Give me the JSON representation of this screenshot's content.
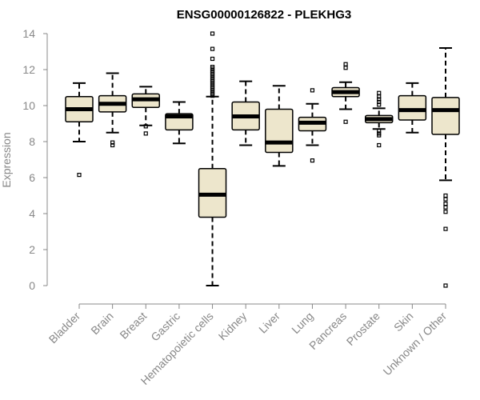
{
  "chart_data": {
    "type": "boxplot",
    "title": "ENSG00000126822 - PLEKHG3",
    "xlabel": "",
    "ylabel": "Expression",
    "ylim": [
      0,
      14
    ],
    "yticks": [
      0,
      2,
      4,
      6,
      8,
      10,
      12,
      14
    ],
    "colors": {
      "box_fill": "#ede6cc",
      "stroke": "#000000",
      "axis": "#888888",
      "label": "#888888",
      "title": "#000000"
    },
    "categories": [
      "Bladder",
      "Brain",
      "Breast",
      "Gastric",
      "Hematopoietic cells",
      "Kidney",
      "Liver",
      "Lung",
      "Pancreas",
      "Prostate",
      "Skin",
      "Unknown / Other"
    ],
    "boxes": [
      {
        "category": "Bladder",
        "whisker_low": 8.0,
        "q1": 9.1,
        "median": 9.8,
        "q3": 10.5,
        "whisker_high": 11.25,
        "outliers": [
          6.15
        ]
      },
      {
        "category": "Brain",
        "whisker_low": 8.5,
        "q1": 9.65,
        "median": 10.1,
        "q3": 10.55,
        "whisker_high": 11.8,
        "outliers": [
          7.8,
          7.95
        ]
      },
      {
        "category": "Breast",
        "whisker_low": 8.9,
        "q1": 9.9,
        "median": 10.35,
        "q3": 10.65,
        "whisker_high": 11.05,
        "outliers": [
          8.45,
          8.85
        ]
      },
      {
        "category": "Gastric",
        "whisker_low": 7.9,
        "q1": 8.65,
        "median": 9.4,
        "q3": 9.55,
        "whisker_high": 10.2,
        "outliers": []
      },
      {
        "category": "Hematopoietic cells",
        "whisker_low": 0.0,
        "q1": 3.8,
        "median": 5.05,
        "q3": 6.5,
        "whisker_high": 10.5,
        "outliers": [
          10.55,
          10.65,
          10.75,
          10.85,
          10.95,
          11.05,
          11.15,
          11.25,
          11.35,
          11.45,
          11.55,
          11.65,
          11.75,
          11.85,
          11.95,
          12.05,
          12.15,
          12.6,
          13.15,
          14.0
        ]
      },
      {
        "category": "Kidney",
        "whisker_low": 7.8,
        "q1": 8.65,
        "median": 9.4,
        "q3": 10.2,
        "whisker_high": 11.35,
        "outliers": []
      },
      {
        "category": "Liver",
        "whisker_low": 6.65,
        "q1": 7.4,
        "median": 7.95,
        "q3": 9.8,
        "whisker_high": 11.1,
        "outliers": []
      },
      {
        "category": "Lung",
        "whisker_low": 7.8,
        "q1": 8.6,
        "median": 9.05,
        "q3": 9.35,
        "whisker_high": 10.1,
        "outliers": [
          6.95,
          10.85
        ]
      },
      {
        "category": "Pancreas",
        "whisker_low": 9.8,
        "q1": 10.5,
        "median": 10.75,
        "q3": 11.0,
        "whisker_high": 11.3,
        "outliers": [
          9.1,
          12.1,
          12.3
        ]
      },
      {
        "category": "Prostate",
        "whisker_low": 8.7,
        "q1": 9.05,
        "median": 9.25,
        "q3": 9.45,
        "whisker_high": 9.85,
        "outliers": [
          7.8,
          8.35,
          8.45,
          8.6,
          10.05,
          10.2,
          10.35,
          10.5,
          10.7
        ]
      },
      {
        "category": "Skin",
        "whisker_low": 8.5,
        "q1": 9.2,
        "median": 9.75,
        "q3": 10.55,
        "whisker_high": 11.25,
        "outliers": []
      },
      {
        "category": "Unknown / Other",
        "whisker_low": 5.85,
        "q1": 8.4,
        "median": 9.75,
        "q3": 10.45,
        "whisker_high": 13.2,
        "outliers": [
          0.0,
          3.15,
          4.1,
          4.35,
          4.55,
          4.8,
          5.0
        ]
      }
    ]
  }
}
